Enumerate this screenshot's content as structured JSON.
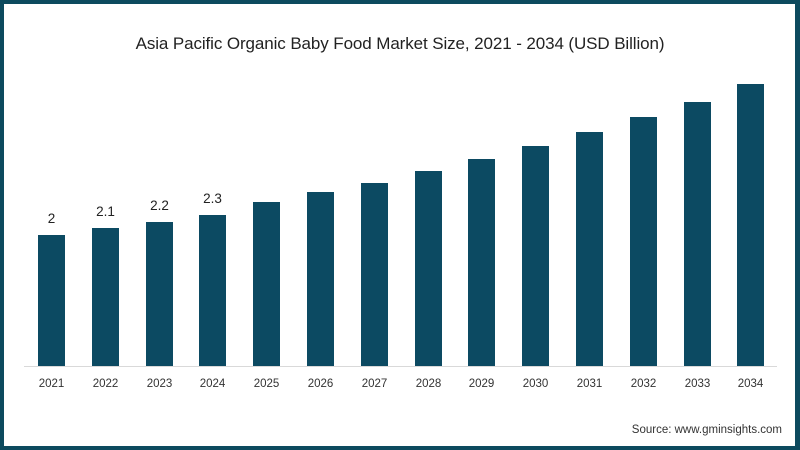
{
  "chart_data": {
    "type": "bar",
    "title": "Asia Pacific Organic Baby Food Market Size, 2021 - 2034 (USD Billion)",
    "xlabel": "",
    "ylabel": "USD Billion",
    "categories": [
      "2021",
      "2022",
      "2023",
      "2024",
      "2025",
      "2026",
      "2027",
      "2028",
      "2029",
      "2030",
      "2031",
      "2032",
      "2033",
      "2034"
    ],
    "values": [
      2.0,
      2.1,
      2.2,
      2.3,
      2.5,
      2.66,
      2.8,
      2.98,
      3.16,
      3.36,
      3.57,
      3.8,
      4.03,
      4.3
    ],
    "data_labels": [
      "2",
      "2.1",
      "2.2",
      "2.3",
      "",
      "",
      "",
      "",
      "",
      "",
      "",
      "",
      "",
      ""
    ],
    "ylim": [
      0,
      4.5
    ],
    "grid": false,
    "legend": null,
    "bar_color": "#0c4a62",
    "source": "Source: www.gminsights.com"
  },
  "colors": {
    "frame": "#0d4a5e",
    "bar": "#0c4a62",
    "axis": "#d9d9d9",
    "text": "#222222"
  }
}
